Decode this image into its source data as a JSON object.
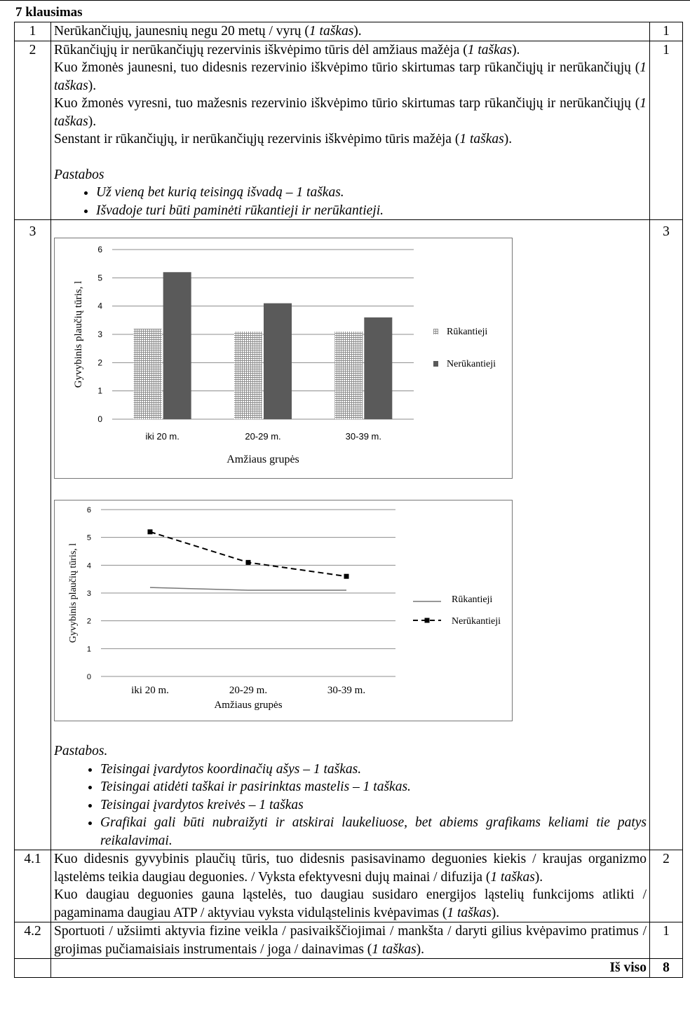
{
  "heading": "7 klausimas",
  "rows": {
    "r1": {
      "num": "1",
      "text_a": "Nerūkančiųjų, jaunesnių negu 20 metų / vyrų (",
      "text_em": "1 taškas",
      "text_b": ").",
      "points": "1"
    },
    "r2": {
      "num": "2",
      "lines": [
        {
          "a": "Rūkančiųjų ir nerūkančiųjų rezervinis iškvėpimo tūris dėl amžiaus mažėja (",
          "em": "1 taškas",
          "b": ")."
        },
        {
          "a": "Kuo žmonės jaunesni, tuo didesnis rezervinio iškvėpimo tūrio skirtumas tarp rūkančiųjų ir nerūkančiųjų (",
          "em": "1 taškas",
          "b": ")."
        },
        {
          "a": "Kuo žmonės vyresni, tuo mažesnis rezervinio iškvėpimo tūrio skirtumas tarp rūkančiųjų ir nerūkančiųjų (",
          "em": "1 taškas",
          "b": ")."
        },
        {
          "a": "Senstant ir rūkančiųjų, ir nerūkančiųjų rezervinis iškvėpimo tūris mažėja (",
          "em": "1 taškas",
          "b": ")."
        }
      ],
      "notes_title": "Pastabos",
      "notes": [
        "Už vieną bet kurią teisingą išvadą – 1 taškas.",
        "Išvadoje turi būti paminėti rūkantieji ir nerūkantieji."
      ],
      "points": "1"
    },
    "r3": {
      "num": "3",
      "points": "3",
      "notes_title": "Pastabos.",
      "notes": [
        "Teisingai įvardytos koordinačių ašys – 1 taškas.",
        "Teisingai atidėti taškai ir pasirinktas mastelis – 1 taškas.",
        "Teisingai įvardytos kreivės – 1 taškas",
        "Grafikai gali būti nubraižyti ir atskirai laukeliuose, bet abiems grafikams keliami tie patys reikalavimai."
      ]
    },
    "r41": {
      "num": "4.1",
      "lines": [
        {
          "a": "Kuo didesnis gyvybinis plaučių tūris, tuo didesnis pasisavinamo deguonies kiekis / kraujas organizmo ląstelėms teikia daugiau deguonies. / Vyksta efektyvesni dujų mainai / difuzija (",
          "em": "1 taškas",
          "b": ")."
        },
        {
          "a": "Kuo daugiau deguonies gauna ląstelės, tuo daugiau susidaro energijos ląstelių funkcijoms atlikti / pagaminama daugiau ATP / aktyviau vyksta viduląstelinis kvėpavimas (",
          "em": "1 taškas",
          "b": ")."
        }
      ],
      "points": "2"
    },
    "r42": {
      "num": "4.2",
      "a": "Sportuoti / užsiimti aktyvia fizine veikla / pasivaikščiojimai / mankšta / daryti gilius kvėpavimo pratimus / grojimas pučiamaisiais instrumentais / joga / dainavimas (",
      "em": "1 taškas",
      "b": ").",
      "points": "1"
    },
    "total": {
      "label": "Iš viso",
      "points": "8"
    }
  },
  "chart_data": [
    {
      "type": "bar",
      "categories": [
        "iki 20 m.",
        "20-29 m.",
        "30-39 m."
      ],
      "series": [
        {
          "name": "Rūkantieji",
          "values": [
            3.2,
            3.1,
            3.1
          ]
        },
        {
          "name": "Nerūkantieji",
          "values": [
            5.2,
            4.1,
            3.6
          ]
        }
      ],
      "xlabel": "Amžiaus grupės",
      "ylabel": "Gyvybinis plaučių tūris, l",
      "ylim": [
        0,
        6
      ],
      "yticks": [
        "0",
        "1",
        "2",
        "3",
        "4",
        "5",
        "6"
      ],
      "grid": true,
      "legend": "right",
      "colors": {
        "Rūkantieji": "#c8c8c8",
        "Nerūkantieji": "#5a5a5a"
      }
    },
    {
      "type": "line",
      "categories": [
        "iki 20 m.",
        "20-29 m.",
        "30-39 m."
      ],
      "series": [
        {
          "name": "Rūkantieji",
          "values": [
            3.2,
            3.1,
            3.1
          ]
        },
        {
          "name": "Nerūkantieji",
          "values": [
            5.2,
            4.1,
            3.6
          ]
        }
      ],
      "xlabel": "Amžiaus grupės",
      "ylabel": "Gyvybinis plaučių tūris, l",
      "ylim": [
        0,
        6
      ],
      "yticks": [
        "0",
        "1",
        "2",
        "3",
        "4",
        "5",
        "6"
      ],
      "grid": true,
      "legend": "right"
    }
  ]
}
